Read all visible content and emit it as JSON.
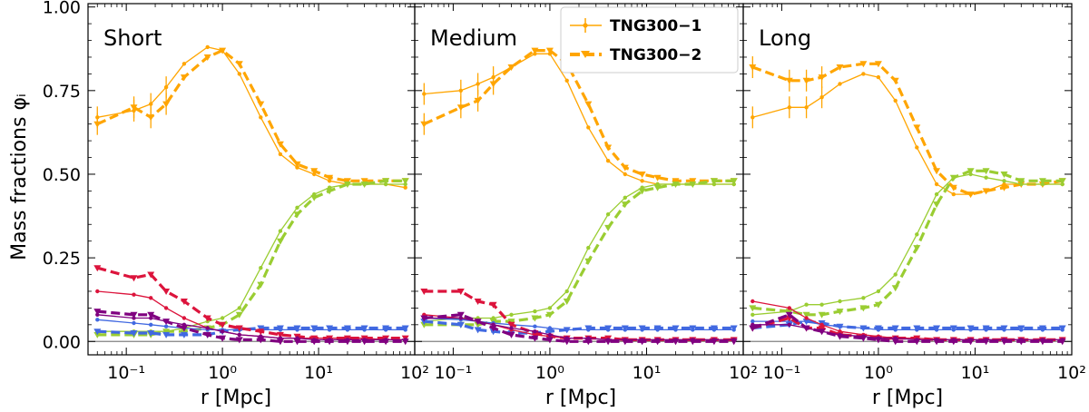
{
  "colors": {
    "orange": "#ffa500",
    "green": "#9acd32",
    "blue": "#4169e1",
    "red": "#dc143c",
    "purple": "#800080",
    "zero_line": "#808080"
  },
  "chart_data": [
    {
      "type": "line",
      "title": "Short",
      "xlabel": "r [Mpc]",
      "ylabel": "Mass fractions φᵢ",
      "xscale": "log",
      "xlim": [
        0.04,
        100
      ],
      "ylim": [
        -0.04,
        1.01
      ],
      "x_ticks": [
        "10⁻¹",
        "10⁰",
        "10¹",
        "10²"
      ],
      "y_ticks": [
        "0.00",
        "0.25",
        "0.50",
        "0.75",
        "1.00"
      ],
      "x": [
        0.05,
        0.12,
        0.18,
        0.26,
        0.4,
        0.7,
        1.0,
        1.5,
        2.5,
        4.0,
        6.0,
        9.0,
        13.0,
        20.0,
        30.0,
        50.0,
        80.0
      ],
      "series": [
        {
          "name": "TNG300−1",
          "color": "orange",
          "style": "solid",
          "values": [
            0.67,
            0.69,
            0.71,
            0.76,
            0.83,
            0.88,
            0.87,
            0.8,
            0.67,
            0.56,
            0.52,
            0.5,
            0.48,
            0.47,
            0.47,
            0.47,
            0.46
          ]
        },
        {
          "name": "TNG300−2",
          "color": "orange",
          "style": "dashed",
          "values": [
            0.65,
            0.7,
            0.67,
            0.71,
            0.79,
            0.85,
            0.87,
            0.83,
            0.71,
            0.59,
            0.53,
            0.51,
            0.49,
            0.48,
            0.48,
            0.48,
            0.48
          ]
        },
        {
          "color": "green",
          "style": "solid",
          "values": [
            0.03,
            0.03,
            0.03,
            0.03,
            0.04,
            0.06,
            0.07,
            0.1,
            0.22,
            0.33,
            0.4,
            0.44,
            0.46,
            0.47,
            0.47,
            0.47,
            0.47
          ]
        },
        {
          "color": "green",
          "style": "dashed",
          "values": [
            0.02,
            0.02,
            0.02,
            0.03,
            0.03,
            0.04,
            0.05,
            0.08,
            0.17,
            0.3,
            0.38,
            0.43,
            0.45,
            0.47,
            0.47,
            0.48,
            0.48
          ]
        },
        {
          "color": "blue",
          "style": "solid",
          "values": [
            0.065,
            0.055,
            0.05,
            0.045,
            0.04,
            0.035,
            0.035,
            0.035,
            0.035,
            0.035,
            0.035,
            0.035,
            0.035,
            0.035,
            0.035,
            0.035,
            0.035
          ]
        },
        {
          "color": "blue",
          "style": "dashed",
          "values": [
            0.03,
            0.025,
            0.025,
            0.02,
            0.02,
            0.02,
            0.03,
            0.035,
            0.04,
            0.04,
            0.04,
            0.04,
            0.04,
            0.04,
            0.04,
            0.04,
            0.04
          ]
        },
        {
          "color": "red",
          "style": "solid",
          "values": [
            0.15,
            0.14,
            0.13,
            0.1,
            0.07,
            0.04,
            0.03,
            0.02,
            0.015,
            0.01,
            0.01,
            0.01,
            0.01,
            0.01,
            0.01,
            0.005,
            0.005
          ]
        },
        {
          "color": "red",
          "style": "dashed",
          "values": [
            0.22,
            0.19,
            0.2,
            0.15,
            0.12,
            0.07,
            0.05,
            0.04,
            0.03,
            0.02,
            0.015,
            0.01,
            0.01,
            0.01,
            0.01,
            0.01,
            0.01
          ]
        },
        {
          "color": "purple",
          "style": "solid",
          "values": [
            0.08,
            0.07,
            0.07,
            0.06,
            0.05,
            0.04,
            0.03,
            0.02,
            0.015,
            0.01,
            0.01,
            0.005,
            0.005,
            0.005,
            0.005,
            0.005,
            0.005
          ]
        },
        {
          "color": "purple",
          "style": "dashed",
          "values": [
            0.09,
            0.08,
            0.08,
            0.06,
            0.04,
            0.02,
            0.01,
            0.005,
            0.005,
            0.0,
            0.0,
            0.0,
            0.0,
            0.0,
            0.0,
            0.0,
            0.0
          ]
        }
      ]
    },
    {
      "type": "line",
      "title": "Medium",
      "xlabel": "r [Mpc]",
      "xscale": "log",
      "xlim": [
        0.04,
        100
      ],
      "ylim": [
        -0.04,
        1.01
      ],
      "x_ticks": [
        "10⁻¹",
        "10⁰",
        "10¹",
        "10²"
      ],
      "x": [
        0.05,
        0.12,
        0.18,
        0.26,
        0.4,
        0.7,
        1.0,
        1.5,
        2.5,
        4.0,
        6.0,
        9.0,
        13.0,
        20.0,
        30.0,
        50.0,
        80.0
      ],
      "series": [
        {
          "name": "TNG300−1",
          "color": "orange",
          "style": "solid",
          "values": [
            0.74,
            0.75,
            0.77,
            0.79,
            0.82,
            0.86,
            0.86,
            0.78,
            0.64,
            0.54,
            0.5,
            0.48,
            0.47,
            0.47,
            0.47,
            0.47,
            0.47
          ]
        },
        {
          "name": "TNG300−2",
          "color": "orange",
          "style": "dashed",
          "values": [
            0.65,
            0.7,
            0.72,
            0.77,
            0.82,
            0.87,
            0.87,
            0.83,
            0.71,
            0.58,
            0.52,
            0.5,
            0.49,
            0.48,
            0.48,
            0.48,
            0.48
          ]
        },
        {
          "color": "green",
          "style": "solid",
          "values": [
            0.06,
            0.07,
            0.07,
            0.07,
            0.08,
            0.09,
            0.1,
            0.15,
            0.28,
            0.38,
            0.43,
            0.46,
            0.47,
            0.47,
            0.47,
            0.47,
            0.47
          ]
        },
        {
          "color": "green",
          "style": "dashed",
          "values": [
            0.05,
            0.05,
            0.05,
            0.06,
            0.06,
            0.07,
            0.08,
            0.12,
            0.24,
            0.34,
            0.41,
            0.45,
            0.46,
            0.47,
            0.47,
            0.48,
            0.48
          ]
        },
        {
          "color": "blue",
          "style": "solid",
          "values": [
            0.07,
            0.065,
            0.06,
            0.055,
            0.05,
            0.045,
            0.04,
            0.035,
            0.035,
            0.035,
            0.035,
            0.035,
            0.035,
            0.035,
            0.035,
            0.035,
            0.035
          ]
        },
        {
          "color": "blue",
          "style": "dashed",
          "values": [
            0.06,
            0.05,
            0.035,
            0.03,
            0.025,
            0.025,
            0.03,
            0.035,
            0.04,
            0.04,
            0.04,
            0.04,
            0.04,
            0.04,
            0.04,
            0.04,
            0.04
          ]
        },
        {
          "color": "red",
          "style": "solid",
          "values": [
            0.08,
            0.07,
            0.06,
            0.05,
            0.035,
            0.02,
            0.015,
            0.01,
            0.01,
            0.005,
            0.005,
            0.005,
            0.005,
            0.005,
            0.005,
            0.005,
            0.005
          ]
        },
        {
          "color": "red",
          "style": "dashed",
          "values": [
            0.15,
            0.15,
            0.12,
            0.11,
            0.05,
            0.025,
            0.015,
            0.01,
            0.01,
            0.01,
            0.005,
            0.005,
            0.005,
            0.005,
            0.005,
            0.005,
            0.005
          ]
        },
        {
          "color": "purple",
          "style": "solid",
          "values": [
            0.07,
            0.07,
            0.06,
            0.05,
            0.04,
            0.03,
            0.02,
            0.01,
            0.01,
            0.005,
            0.005,
            0.005,
            0.005,
            0.005,
            0.005,
            0.005,
            0.005
          ]
        },
        {
          "color": "purple",
          "style": "dashed",
          "values": [
            0.07,
            0.08,
            0.06,
            0.04,
            0.02,
            0.01,
            0.005,
            0.0,
            0.0,
            0.0,
            0.0,
            0.0,
            0.0,
            0.0,
            0.0,
            0.0,
            0.0
          ]
        }
      ]
    },
    {
      "type": "line",
      "title": "Long",
      "xlabel": "r [Mpc]",
      "xscale": "log",
      "xlim": [
        0.04,
        100
      ],
      "ylim": [
        -0.04,
        1.01
      ],
      "x_ticks": [
        "10⁻¹",
        "10⁰",
        "10¹",
        "10²"
      ],
      "x": [
        0.05,
        0.12,
        0.18,
        0.26,
        0.4,
        0.7,
        1.0,
        1.5,
        2.5,
        4.0,
        6.0,
        9.0,
        13.0,
        20.0,
        30.0,
        50.0,
        80.0
      ],
      "series": [
        {
          "name": "TNG300−1",
          "color": "orange",
          "style": "solid",
          "values": [
            0.67,
            0.7,
            0.7,
            0.73,
            0.77,
            0.8,
            0.79,
            0.72,
            0.58,
            0.47,
            0.44,
            0.44,
            0.45,
            0.47,
            0.47,
            0.47,
            0.47
          ]
        },
        {
          "name": "TNG300−2",
          "color": "orange",
          "style": "dashed",
          "values": [
            0.82,
            0.78,
            0.78,
            0.79,
            0.82,
            0.83,
            0.83,
            0.78,
            0.64,
            0.51,
            0.46,
            0.44,
            0.45,
            0.46,
            0.47,
            0.47,
            0.48
          ]
        },
        {
          "color": "green",
          "style": "solid",
          "values": [
            0.08,
            0.09,
            0.11,
            0.11,
            0.12,
            0.13,
            0.15,
            0.2,
            0.32,
            0.44,
            0.49,
            0.5,
            0.49,
            0.48,
            0.47,
            0.47,
            0.47
          ]
        },
        {
          "color": "green",
          "style": "dashed",
          "values": [
            0.1,
            0.09,
            0.08,
            0.08,
            0.09,
            0.1,
            0.11,
            0.16,
            0.28,
            0.41,
            0.49,
            0.51,
            0.51,
            0.5,
            0.48,
            0.48,
            0.48
          ]
        },
        {
          "color": "blue",
          "style": "solid",
          "values": [
            0.06,
            0.06,
            0.06,
            0.05,
            0.045,
            0.04,
            0.035,
            0.035,
            0.035,
            0.035,
            0.035,
            0.035,
            0.035,
            0.035,
            0.035,
            0.035,
            0.035
          ]
        },
        {
          "color": "blue",
          "style": "dashed",
          "values": [
            0.04,
            0.05,
            0.06,
            0.055,
            0.045,
            0.04,
            0.04,
            0.04,
            0.04,
            0.04,
            0.04,
            0.04,
            0.04,
            0.04,
            0.04,
            0.04,
            0.04
          ]
        },
        {
          "color": "red",
          "style": "solid",
          "values": [
            0.12,
            0.1,
            0.07,
            0.05,
            0.03,
            0.02,
            0.015,
            0.01,
            0.01,
            0.005,
            0.005,
            0.005,
            0.005,
            0.005,
            0.005,
            0.005,
            0.005
          ]
        },
        {
          "color": "red",
          "style": "dashed",
          "values": [
            0.04,
            0.07,
            0.04,
            0.04,
            0.02,
            0.015,
            0.01,
            0.01,
            0.01,
            0.005,
            0.005,
            0.005,
            0.005,
            0.005,
            0.005,
            0.005,
            0.005
          ]
        },
        {
          "color": "purple",
          "style": "solid",
          "values": [
            0.05,
            0.05,
            0.04,
            0.03,
            0.02,
            0.015,
            0.01,
            0.01,
            0.005,
            0.005,
            0.005,
            0.005,
            0.005,
            0.005,
            0.005,
            0.005,
            0.005
          ]
        },
        {
          "color": "purple",
          "style": "dashed",
          "values": [
            0.04,
            0.08,
            0.04,
            0.03,
            0.015,
            0.01,
            0.005,
            0.0,
            0.0,
            0.0,
            0.0,
            0.0,
            0.0,
            0.0,
            0.0,
            0.0,
            0.0
          ]
        }
      ]
    }
  ],
  "legend": {
    "location": "top-right of middle panel",
    "entries": [
      {
        "label": "TNG300−1",
        "color": "orange",
        "style": "solid"
      },
      {
        "label": "TNG300−2",
        "color": "orange",
        "style": "dashed"
      }
    ]
  }
}
